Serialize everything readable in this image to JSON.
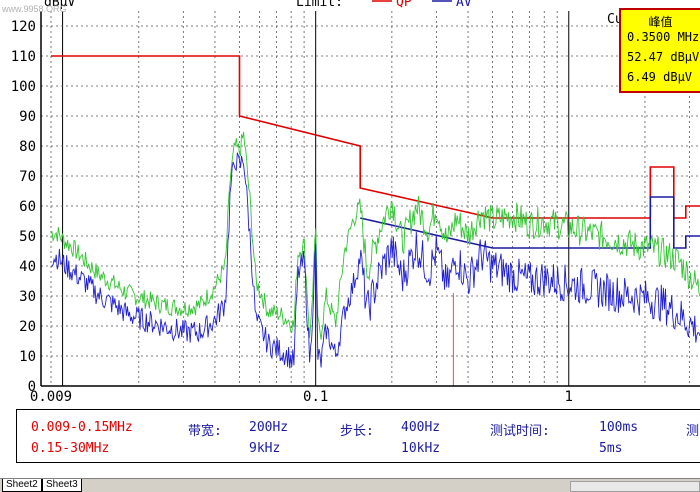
{
  "watermark": "www.9958.ORG",
  "header": {
    "ylabel": "dBμV",
    "limit_label": "Limit:",
    "qp_label": "QP",
    "av_label": "AV"
  },
  "cursor_label": "Cu",
  "peak_box": {
    "title": "峰值",
    "freq": "0.3500 MHz",
    "level": "52.47 dBμV",
    "delta": "6.49 dBμV"
  },
  "info": {
    "range1": "0.009-0.15MHz",
    "range2": "0.15-30MHz",
    "bw_label": "带宽:",
    "bw1": "200Hz",
    "bw2": "9kHz",
    "step_label": "步长:",
    "step1": "400Hz",
    "step2": "10kHz",
    "time_label": "测试时间:",
    "time1": "100ms",
    "time2": "5ms",
    "cut_label": "测"
  },
  "tabs": [
    "Sheet2",
    "Sheet3"
  ],
  "colors": {
    "qp": "#e00000",
    "av": "#1a1aa0",
    "green": "#33c433",
    "blue": "#2020d0",
    "marker": "#e05050"
  },
  "chart_data": {
    "type": "line",
    "x_scale": "log",
    "xlim": [
      0.009,
      3.3
    ],
    "ylim": [
      0,
      125
    ],
    "x_ticks": [
      0.009,
      0.1,
      1
    ],
    "x_tick_labels": [
      "0.009",
      "0.1",
      "1"
    ],
    "y_ticks": [
      0,
      10,
      20,
      30,
      40,
      50,
      60,
      70,
      80,
      90,
      100,
      110,
      120
    ],
    "grid": true,
    "cursor_freq": 0.35,
    "series": [
      {
        "name": "QP",
        "role": "limit",
        "points": [
          [
            0.009,
            110
          ],
          [
            0.05,
            110
          ],
          [
            0.05,
            90
          ],
          [
            0.15,
            80
          ],
          [
            0.15,
            66
          ],
          [
            0.5,
            56
          ],
          [
            2.1,
            56
          ],
          [
            2.1,
            73
          ],
          [
            2.6,
            73
          ],
          [
            2.6,
            56
          ],
          [
            2.9,
            56
          ],
          [
            2.9,
            60
          ],
          [
            3.3,
            60
          ]
        ]
      },
      {
        "name": "AV",
        "role": "limit",
        "points": [
          [
            0.15,
            56
          ],
          [
            0.5,
            46
          ],
          [
            2.1,
            46
          ],
          [
            2.1,
            63
          ],
          [
            2.6,
            63
          ],
          [
            2.6,
            46
          ],
          [
            2.9,
            46
          ],
          [
            2.9,
            50
          ],
          [
            3.3,
            50
          ]
        ]
      },
      {
        "role": "peak",
        "points": [
          [
            0.009,
            51
          ],
          [
            0.0095,
            51
          ],
          [
            0.01,
            49
          ],
          [
            0.011,
            46
          ],
          [
            0.0125,
            41
          ],
          [
            0.014,
            37
          ],
          [
            0.016,
            34
          ],
          [
            0.018,
            31
          ],
          [
            0.021,
            29
          ],
          [
            0.025,
            27
          ],
          [
            0.03,
            26
          ],
          [
            0.035,
            27
          ],
          [
            0.04,
            33
          ],
          [
            0.044,
            40
          ],
          [
            0.046,
            70
          ],
          [
            0.048,
            80
          ],
          [
            0.05,
            78
          ],
          [
            0.052,
            84
          ],
          [
            0.055,
            62
          ],
          [
            0.058,
            35
          ],
          [
            0.065,
            25
          ],
          [
            0.072,
            24
          ],
          [
            0.078,
            22
          ],
          [
            0.082,
            20
          ],
          [
            0.085,
            44
          ],
          [
            0.09,
            48
          ],
          [
            0.095,
            15
          ],
          [
            0.1,
            52
          ],
          [
            0.102,
            20
          ],
          [
            0.105,
            18
          ],
          [
            0.11,
            30
          ],
          [
            0.12,
            21
          ],
          [
            0.13,
            45
          ],
          [
            0.14,
            55
          ],
          [
            0.15,
            60
          ],
          [
            0.16,
            38
          ],
          [
            0.18,
            53
          ],
          [
            0.2,
            62
          ],
          [
            0.22,
            48
          ],
          [
            0.25,
            60
          ],
          [
            0.28,
            52
          ],
          [
            0.3,
            60
          ],
          [
            0.33,
            48
          ],
          [
            0.36,
            56
          ],
          [
            0.4,
            50
          ],
          [
            0.45,
            58
          ],
          [
            0.5,
            55
          ],
          [
            0.6,
            57
          ],
          [
            0.7,
            54
          ],
          [
            0.8,
            55
          ],
          [
            1.0,
            53
          ],
          [
            1.2,
            51
          ],
          [
            1.5,
            49
          ],
          [
            1.8,
            47
          ],
          [
            2.1,
            46
          ],
          [
            2.4,
            44
          ],
          [
            2.7,
            42
          ],
          [
            3.0,
            37
          ],
          [
            3.3,
            32
          ]
        ]
      },
      {
        "role": "average",
        "points": [
          [
            0.009,
            43
          ],
          [
            0.0095,
            43
          ],
          [
            0.01,
            41
          ],
          [
            0.011,
            38
          ],
          [
            0.0125,
            34
          ],
          [
            0.014,
            30
          ],
          [
            0.016,
            27
          ],
          [
            0.018,
            24
          ],
          [
            0.021,
            22
          ],
          [
            0.025,
            20
          ],
          [
            0.03,
            18
          ],
          [
            0.035,
            18
          ],
          [
            0.04,
            22
          ],
          [
            0.044,
            28
          ],
          [
            0.046,
            65
          ],
          [
            0.048,
            76
          ],
          [
            0.05,
            73
          ],
          [
            0.052,
            76
          ],
          [
            0.055,
            50
          ],
          [
            0.058,
            22
          ],
          [
            0.065,
            14
          ],
          [
            0.072,
            12
          ],
          [
            0.078,
            10
          ],
          [
            0.082,
            8
          ],
          [
            0.085,
            37
          ],
          [
            0.09,
            42
          ],
          [
            0.095,
            7
          ],
          [
            0.1,
            48
          ],
          [
            0.102,
            10
          ],
          [
            0.105,
            8
          ],
          [
            0.11,
            19
          ],
          [
            0.12,
            10
          ],
          [
            0.13,
            25
          ],
          [
            0.14,
            33
          ],
          [
            0.15,
            43
          ],
          [
            0.16,
            25
          ],
          [
            0.18,
            38
          ],
          [
            0.2,
            46
          ],
          [
            0.22,
            36
          ],
          [
            0.25,
            47
          ],
          [
            0.28,
            38
          ],
          [
            0.3,
            45
          ],
          [
            0.33,
            33
          ],
          [
            0.36,
            43
          ],
          [
            0.4,
            35
          ],
          [
            0.45,
            44
          ],
          [
            0.5,
            40
          ],
          [
            0.6,
            37
          ],
          [
            0.7,
            35
          ],
          [
            0.8,
            36
          ],
          [
            1.0,
            34
          ],
          [
            1.2,
            33
          ],
          [
            1.5,
            31
          ],
          [
            1.8,
            30
          ],
          [
            2.1,
            29
          ],
          [
            2.4,
            27
          ],
          [
            2.7,
            24
          ],
          [
            3.0,
            21
          ],
          [
            3.3,
            18
          ]
        ]
      }
    ]
  }
}
